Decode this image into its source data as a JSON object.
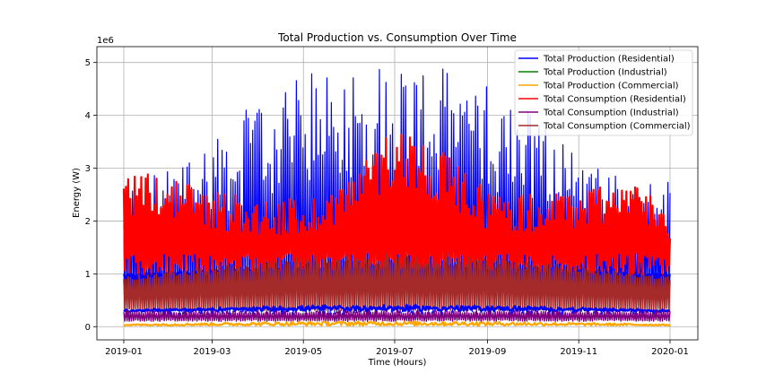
{
  "chart_data": {
    "type": "line",
    "title": "Total Production vs. Consumption Over Time",
    "xlabel": "Time (Hours)",
    "ylabel": "Energy (W)",
    "y_offset_label": "1e6",
    "x_ticks": [
      "2019-01",
      "2019-03",
      "2019-05",
      "2019-07",
      "2019-09",
      "2019-11",
      "2020-01"
    ],
    "x_range": [
      "2019-01-01",
      "2020-01-01"
    ],
    "y_ticks": [
      0,
      1,
      2,
      3,
      4,
      5
    ],
    "ylim": [
      -0.25,
      5.3
    ],
    "y_unit_multiplier": 1000000,
    "grid": true,
    "legend_position": "upper-right",
    "series": [
      {
        "name": "Total Production (Residential)",
        "color": "#0000ff",
        "peak_envelope_months": [
          "2019-01",
          "2019-02",
          "2019-03",
          "2019-04",
          "2019-05",
          "2019-06",
          "2019-07",
          "2019-08",
          "2019-09",
          "2019-10",
          "2019-11",
          "2019-12",
          "2020-01"
        ],
        "peak_envelope_values": [
          2.8,
          3.0,
          3.7,
          4.3,
          4.8,
          5.0,
          5.05,
          4.9,
          4.6,
          4.2,
          3.3,
          2.8,
          2.8
        ],
        "high_band": [
          0.95,
          1.3
        ],
        "low_band": [
          0.2,
          0.4
        ]
      },
      {
        "name": "Total Production (Industrial)",
        "color": "#008000"
      },
      {
        "name": "Total Production (Commercial)",
        "color": "#ffa500",
        "band": [
          0.02,
          0.1
        ]
      },
      {
        "name": "Total Consumption (Residential)",
        "color": "#ff0000",
        "peak_envelope_months": [
          "2019-01",
          "2019-02",
          "2019-03",
          "2019-04",
          "2019-05",
          "2019-06",
          "2019-07",
          "2019-08",
          "2019-09",
          "2019-10",
          "2019-11",
          "2019-12",
          "2020-01"
        ],
        "peak_envelope_values": [
          3.0,
          2.9,
          2.6,
          2.45,
          2.4,
          2.9,
          3.9,
          3.3,
          2.6,
          2.5,
          2.6,
          2.9,
          2.3
        ],
        "base_band": [
          0.9,
          1.4
        ]
      },
      {
        "name": "Total Consumption (Industrial)",
        "color": "#800080",
        "band": [
          0.1,
          0.3
        ]
      },
      {
        "name": "Total Consumption (Commercial)",
        "color": "#a52a2a",
        "band": [
          0.3,
          1.3
        ]
      }
    ]
  }
}
